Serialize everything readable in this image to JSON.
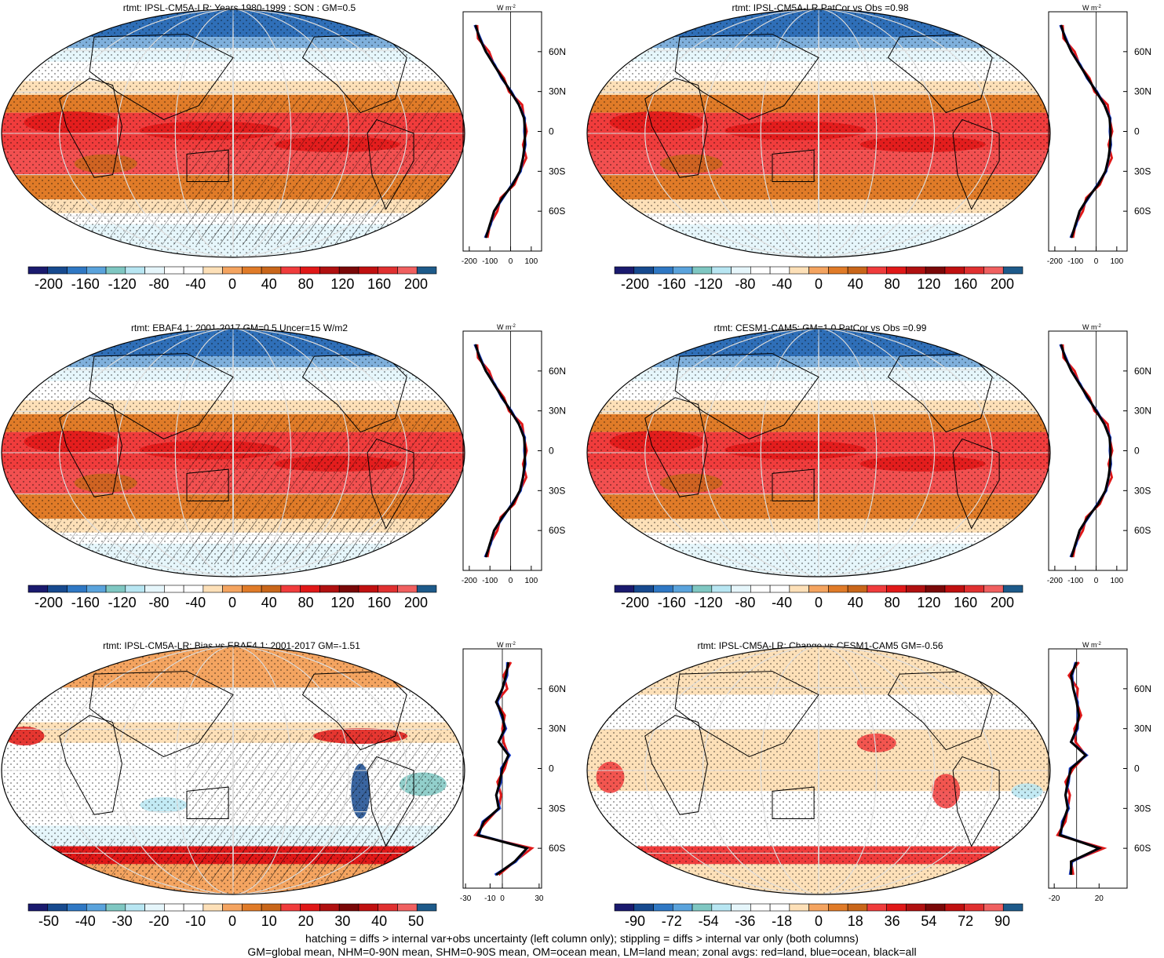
{
  "palette_full": [
    "#1a1a6e",
    "#174a8f",
    "#2f78c4",
    "#5aa3dc",
    "#7fc7c2",
    "#b8e6f2",
    "#e6f6fb",
    "#ffffff",
    "#ffffff",
    "#fde0b8",
    "#f4a460",
    "#e07b28",
    "#c9661a",
    "#f03c3c",
    "#e01818",
    "#b01010",
    "#7a0808",
    "#c01010",
    "#e03030",
    "#f06060",
    "#1d5a8a"
  ],
  "palette_diff": [
    "#1a1a6e",
    "#174a8f",
    "#2f78c4",
    "#5aa3dc",
    "#7fc7c2",
    "#b8e6f2",
    "#e6f6fb",
    "#ffffff",
    "#ffffff",
    "#fde0b8",
    "#f4a460",
    "#e07b28",
    "#c9661a",
    "#f03c3c",
    "#e01818",
    "#b01010",
    "#7a0808",
    "#c01010",
    "#e03030",
    "#f06060",
    "#1d5a8a"
  ],
  "lat_ticks": [
    "60N",
    "30N",
    "0",
    "30S",
    "60S"
  ],
  "profile_unit": "W m",
  "profile_unit_sup": "-2",
  "panels": [
    {
      "title": "rtmt: IPSL-CM5A-LR: Years 1980-1999 : SON : GM=0.5",
      "cb_labels": [
        "-200",
        "-160",
        "-120",
        "-80",
        "-40",
        "0",
        "40",
        "80",
        "120",
        "160",
        "200"
      ],
      "x_ticks": [
        "-200",
        "-100",
        "0",
        "100"
      ],
      "hatch": true
    },
    {
      "title": "rtmt: IPSL-CM5A-LR PatCor vs Obs =0.98",
      "cb_labels": [
        "-200",
        "-160",
        "-120",
        "-80",
        "-40",
        "0",
        "40",
        "80",
        "120",
        "160",
        "200"
      ],
      "x_ticks": [
        "-200",
        "-100",
        "0",
        "100"
      ],
      "hatch": false
    },
    {
      "title": "rtmt: EBAF4.1: 2001-2017 GM=0.5 Uncer=15 W/m2",
      "cb_labels": [
        "-200",
        "-160",
        "-120",
        "-80",
        "-40",
        "0",
        "40",
        "80",
        "120",
        "160",
        "200"
      ],
      "x_ticks": [
        "-200",
        "-100",
        "0",
        "100"
      ],
      "hatch": true
    },
    {
      "title": "rtmt: CESM1-CAM5: GM=1.0 PatCor vs Obs =0.99",
      "cb_labels": [
        "-200",
        "-160",
        "-120",
        "-80",
        "-40",
        "0",
        "40",
        "80",
        "120",
        "160",
        "200"
      ],
      "x_ticks": [
        "-200",
        "-100",
        "0",
        "100"
      ],
      "hatch": false
    },
    {
      "title": "rtmt: IPSL-CM5A-LR: Bias vs EBAF4.1: 2001-2017  GM=-1.51",
      "cb_labels": [
        "-50",
        "-40",
        "-30",
        "-20",
        "-10",
        "0",
        "10",
        "20",
        "30",
        "40",
        "50"
      ],
      "x_ticks": [
        "-30",
        "-10",
        "0",
        "30"
      ],
      "hatch": true
    },
    {
      "title": "rtmt: IPSL-CM5A-LR: Change vs CESM1-CAM5 GM=-0.56",
      "cb_labels": [
        "-90",
        "-72",
        "-54",
        "-36",
        "-18",
        "0",
        "18",
        "36",
        "54",
        "72",
        "90"
      ],
      "x_ticks": [
        "-20",
        "20"
      ],
      "hatch": false
    }
  ],
  "chart_data": [
    {
      "type": "heatmap",
      "title": "rtmt: IPSL-CM5A-LR: Years 1980-1999 : SON : GM=0.5",
      "colorbar": [
        -200,
        -160,
        -120,
        -80,
        -40,
        0,
        40,
        80,
        120,
        160,
        200
      ],
      "zonal": {
        "lat": [
          80,
          70,
          60,
          50,
          40,
          30,
          20,
          10,
          0,
          -10,
          -20,
          -30,
          -40,
          -50,
          -60,
          -70,
          -80
        ],
        "all": [
          -170,
          -150,
          -120,
          -80,
          -40,
          0,
          40,
          65,
          70,
          68,
          60,
          45,
          10,
          -40,
          -80,
          -100,
          -120
        ]
      }
    },
    {
      "type": "heatmap",
      "title": "rtmt: IPSL-CM5A-LR PatCor vs Obs =0.98",
      "colorbar": [
        -200,
        -160,
        -120,
        -80,
        -40,
        0,
        40,
        80,
        120,
        160,
        200
      ],
      "zonal": {
        "lat": [
          80,
          70,
          60,
          50,
          40,
          30,
          20,
          10,
          0,
          -10,
          -20,
          -30,
          -40,
          -50,
          -60,
          -70,
          -80
        ],
        "all": [
          -170,
          -150,
          -120,
          -80,
          -40,
          0,
          40,
          65,
          70,
          68,
          60,
          45,
          10,
          -40,
          -80,
          -100,
          -120
        ]
      }
    },
    {
      "type": "heatmap",
      "title": "rtmt: EBAF4.1: 2001-2017 GM=0.5 Uncer=15 W/m2",
      "colorbar": [
        -200,
        -160,
        -120,
        -80,
        -40,
        0,
        40,
        80,
        120,
        160,
        200
      ],
      "zonal": {
        "lat": [
          80,
          70,
          60,
          50,
          40,
          30,
          20,
          10,
          0,
          -10,
          -20,
          -30,
          -40,
          -50,
          -60,
          -70,
          -80
        ],
        "all": [
          -170,
          -150,
          -120,
          -80,
          -40,
          0,
          40,
          65,
          70,
          68,
          60,
          45,
          10,
          -40,
          -80,
          -100,
          -120
        ]
      }
    },
    {
      "type": "heatmap",
      "title": "rtmt: CESM1-CAM5: GM=1.0 PatCor vs Obs =0.99",
      "colorbar": [
        -200,
        -160,
        -120,
        -80,
        -40,
        0,
        40,
        80,
        120,
        160,
        200
      ],
      "zonal": {
        "lat": [
          80,
          70,
          60,
          50,
          40,
          30,
          20,
          10,
          0,
          -10,
          -20,
          -30,
          -40,
          -50,
          -60,
          -70,
          -80
        ],
        "all": [
          -170,
          -150,
          -120,
          -80,
          -40,
          0,
          40,
          65,
          70,
          68,
          60,
          45,
          10,
          -40,
          -80,
          -100,
          -120
        ]
      }
    },
    {
      "type": "heatmap",
      "title": "rtmt: IPSL-CM5A-LR: Bias vs EBAF4.1: 2001-2017  GM=-1.51",
      "colorbar": [
        -50,
        -40,
        -30,
        -20,
        -10,
        0,
        10,
        20,
        30,
        40,
        50
      ],
      "zonal": {
        "lat": [
          80,
          70,
          60,
          50,
          40,
          30,
          20,
          10,
          0,
          -10,
          -20,
          -30,
          -40,
          -50,
          -60,
          -70,
          -80
        ],
        "all": [
          5,
          3,
          0,
          -5,
          0,
          2,
          -3,
          5,
          0,
          -2,
          -5,
          -3,
          -15,
          -20,
          20,
          10,
          -5
        ]
      }
    },
    {
      "type": "heatmap",
      "title": "rtmt: IPSL-CM5A-LR: Change vs CESM1-CAM5 GM=-0.56",
      "colorbar": [
        -90,
        -72,
        -54,
        -36,
        -18,
        0,
        18,
        36,
        54,
        72,
        90
      ],
      "zonal": {
        "lat": [
          80,
          70,
          60,
          50,
          40,
          30,
          20,
          10,
          0,
          -10,
          -20,
          -30,
          -40,
          -50,
          -60,
          -70,
          -80
        ],
        "all": [
          0,
          -5,
          -3,
          0,
          2,
          0,
          -5,
          8,
          -5,
          -8,
          -10,
          -8,
          -12,
          -15,
          20,
          -5,
          -5
        ]
      }
    }
  ],
  "footer_line1": "hatching = diffs > internal var+obs uncertainty (left column only); stippling = diffs > internal var only (both columns)",
  "footer_line2": "GM=global mean, NHM=0-90N mean, SHM=0-90S mean, OM=ocean mean, LM=land mean; zonal avgs: red=land, blue=ocean, black=all"
}
